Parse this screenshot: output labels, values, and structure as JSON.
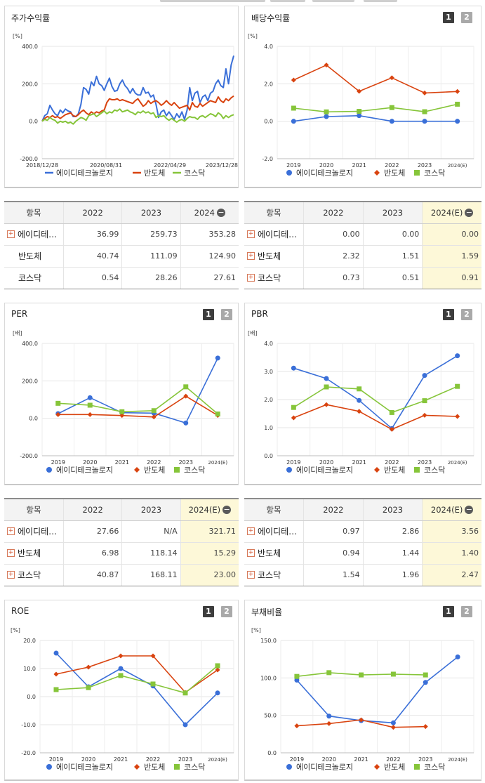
{
  "colors": {
    "company": "#3a6fd8",
    "semiconductor": "#d9430f",
    "kosdaq": "#86c53a"
  },
  "legend": [
    "에이디테크놀로지",
    "반도체",
    "코스닥"
  ],
  "panels": {
    "return": {
      "title": "주가수익률"
    },
    "dividend": {
      "title": "배당수익률",
      "btn1": "1",
      "btn2": "2"
    },
    "per": {
      "title": "PER",
      "btn1": "1",
      "btn2": "2"
    },
    "pbr": {
      "title": "PBR",
      "btn1": "1",
      "btn2": "2"
    },
    "roe": {
      "title": "ROE",
      "btn1": "1",
      "btn2": "2"
    },
    "debt": {
      "title": "부채비율",
      "btn1": "1",
      "btn2": "2"
    }
  },
  "tables": {
    "return": {
      "headers": [
        "항목",
        "2022",
        "2023",
        "2024"
      ],
      "rows": [
        {
          "name": "에이디테…",
          "v": [
            "36.99",
            "259.73",
            "353.28"
          ],
          "plus": true
        },
        {
          "name": "반도체",
          "v": [
            "40.74",
            "111.09",
            "124.90"
          ],
          "plus": false
        },
        {
          "name": "코스닥",
          "v": [
            "0.54",
            "28.26",
            "27.61"
          ],
          "plus": false
        }
      ]
    },
    "dividend": {
      "headers": [
        "항목",
        "2022",
        "2023",
        "2024(E)"
      ],
      "rows": [
        {
          "name": "에이디테…",
          "v": [
            "0.00",
            "0.00",
            "0.00"
          ],
          "plus": true
        },
        {
          "name": "반도체",
          "v": [
            "2.32",
            "1.51",
            "1.59"
          ],
          "plus": true
        },
        {
          "name": "코스닥",
          "v": [
            "0.73",
            "0.51",
            "0.91"
          ],
          "plus": true
        }
      ]
    },
    "per": {
      "headers": [
        "항목",
        "2022",
        "2023",
        "2024(E)"
      ],
      "rows": [
        {
          "name": "에이디테…",
          "v": [
            "27.66",
            "N/A",
            "321.71"
          ],
          "plus": true
        },
        {
          "name": "반도체",
          "v": [
            "6.98",
            "118.14",
            "15.29"
          ],
          "plus": true
        },
        {
          "name": "코스닥",
          "v": [
            "40.87",
            "168.11",
            "23.00"
          ],
          "plus": true
        }
      ]
    },
    "pbr": {
      "headers": [
        "항목",
        "2022",
        "2023",
        "2024(E)"
      ],
      "rows": [
        {
          "name": "에이디테…",
          "v": [
            "0.97",
            "2.86",
            "3.56"
          ],
          "plus": true
        },
        {
          "name": "반도체",
          "v": [
            "0.94",
            "1.44",
            "1.40"
          ],
          "plus": true
        },
        {
          "name": "코스닥",
          "v": [
            "1.54",
            "1.96",
            "2.47"
          ],
          "plus": true
        }
      ]
    }
  },
  "chart_data": [
    {
      "id": "return",
      "type": "line",
      "unit": "[%]",
      "ylim": [
        -200,
        400
      ],
      "yticks": [
        "400.0",
        "200.0",
        "0.0",
        "-200.0"
      ],
      "xticks": [
        "2018/12/28",
        "2020/08/31",
        "2022/04/29",
        "2023/12/28"
      ],
      "series": [
        {
          "name": "에이디테크놀로지",
          "values": [
            0,
            30,
            40,
            85,
            60,
            40,
            30,
            60,
            45,
            65,
            55,
            50,
            25,
            25,
            40,
            90,
            180,
            170,
            145,
            210,
            190,
            240,
            200,
            190,
            165,
            200,
            230,
            185,
            160,
            165,
            200,
            220,
            190,
            175,
            150,
            175,
            150,
            140,
            140,
            180,
            150,
            155,
            130,
            140,
            90,
            20,
            50,
            60,
            30,
            50,
            30,
            10,
            40,
            20,
            50,
            10,
            60,
            180,
            110,
            150,
            160,
            100,
            130,
            140,
            110,
            150,
            160,
            200,
            220,
            190,
            180,
            280,
            200,
            300,
            350
          ]
        },
        {
          "name": "반도체",
          "values": [
            0,
            15,
            25,
            20,
            30,
            20,
            25,
            15,
            25,
            35,
            40,
            45,
            30,
            25,
            35,
            50,
            60,
            45,
            35,
            50,
            40,
            50,
            45,
            55,
            60,
            100,
            120,
            115,
            115,
            120,
            110,
            115,
            110,
            105,
            100,
            95,
            110,
            120,
            100,
            80,
            90,
            110,
            95,
            105,
            110,
            100,
            85,
            95,
            110,
            95,
            85,
            100,
            85,
            70,
            75,
            80,
            85,
            60,
            100,
            80,
            75,
            95,
            80,
            90,
            100,
            110,
            105,
            100,
            130,
            110,
            100,
            120,
            110,
            125,
            135
          ]
        },
        {
          "name": "코스닥",
          "values": [
            0,
            10,
            5,
            20,
            10,
            5,
            -10,
            0,
            -5,
            0,
            -10,
            -5,
            -15,
            0,
            10,
            20,
            15,
            5,
            30,
            35,
            40,
            25,
            35,
            45,
            55,
            40,
            50,
            45,
            60,
            55,
            65,
            50,
            55,
            60,
            50,
            45,
            35,
            50,
            45,
            55,
            45,
            50,
            40,
            45,
            20,
            30,
            25,
            30,
            15,
            5,
            15,
            5,
            -5,
            5,
            10,
            0,
            15,
            25,
            20,
            20,
            10,
            25,
            30,
            20,
            30,
            40,
            35,
            25,
            45,
            35,
            15,
            30,
            20,
            30,
            35
          ]
        }
      ]
    },
    {
      "id": "dividend",
      "type": "line",
      "unit": "[%]",
      "ylim": [
        -2,
        4
      ],
      "yticks": [
        "4.0",
        "2.0",
        "0.0",
        "-2.0"
      ],
      "categories": [
        "2019",
        "2020",
        "2021",
        "2022",
        "2023",
        "2024(E)"
      ],
      "series": [
        {
          "name": "에이디테크놀로지",
          "values": [
            0.0,
            0.25,
            0.3,
            0.0,
            0.0,
            0.0
          ]
        },
        {
          "name": "반도체",
          "values": [
            2.2,
            3.0,
            1.6,
            2.32,
            1.51,
            1.59
          ]
        },
        {
          "name": "코스닥",
          "values": [
            0.7,
            0.5,
            0.53,
            0.73,
            0.51,
            0.91
          ]
        }
      ]
    },
    {
      "id": "per",
      "type": "line",
      "unit": "[배]",
      "ylim": [
        -200,
        400
      ],
      "yticks": [
        "400.0",
        "200.0",
        "0.0",
        "-200.0"
      ],
      "categories": [
        "2019",
        "2020",
        "2021",
        "2022",
        "2023",
        "2024(E)"
      ],
      "series": [
        {
          "name": "에이디테크놀로지",
          "values": [
            25,
            110,
            30,
            27.66,
            -25,
            321.71
          ]
        },
        {
          "name": "반도체",
          "values": [
            20,
            20,
            15,
            6.98,
            118.14,
            15.29
          ]
        },
        {
          "name": "코스닥",
          "values": [
            80,
            70,
            35,
            40.87,
            168.11,
            23.0
          ]
        }
      ]
    },
    {
      "id": "pbr",
      "type": "line",
      "unit": "[배]",
      "ylim": [
        0,
        4
      ],
      "yticks": [
        "4.0",
        "3.0",
        "2.0",
        "1.0",
        "0.0"
      ],
      "categories": [
        "2019",
        "2020",
        "2021",
        "2022",
        "2023",
        "2024(E)"
      ],
      "series": [
        {
          "name": "에이디테크놀로지",
          "values": [
            3.12,
            2.75,
            1.97,
            0.97,
            2.86,
            3.56
          ]
        },
        {
          "name": "반도체",
          "values": [
            1.35,
            1.82,
            1.58,
            0.94,
            1.44,
            1.4
          ]
        },
        {
          "name": "코스닥",
          "values": [
            1.72,
            2.45,
            2.38,
            1.54,
            1.96,
            2.47
          ]
        }
      ]
    },
    {
      "id": "roe",
      "type": "line",
      "unit": "[%]",
      "ylim": [
        -20,
        20
      ],
      "yticks": [
        "20.0",
        "10.0",
        "0.0",
        "-10.0",
        "-20.0"
      ],
      "categories": [
        "2019",
        "2020",
        "2021",
        "2022",
        "2023",
        "2024(E)"
      ],
      "series": [
        {
          "name": "에이디테크놀로지",
          "values": [
            15.5,
            3.5,
            10.0,
            3.8,
            -10.0,
            1.3
          ]
        },
        {
          "name": "반도체",
          "values": [
            8.0,
            10.5,
            14.5,
            14.5,
            1.5,
            9.5
          ]
        },
        {
          "name": "코스닥",
          "values": [
            2.5,
            3.2,
            7.5,
            4.5,
            1.3,
            11.0
          ]
        }
      ]
    },
    {
      "id": "debt",
      "type": "line",
      "unit": "[%]",
      "ylim": [
        0,
        150
      ],
      "yticks": [
        "150.0",
        "100.0",
        "50.0",
        "0.0"
      ],
      "categories": [
        "2019",
        "2020",
        "2021",
        "2022",
        "2023",
        "2024(E)"
      ],
      "series": [
        {
          "name": "에이디테크놀로지",
          "values": [
            97,
            49,
            43,
            40,
            94,
            128
          ]
        },
        {
          "name": "반도체",
          "values": [
            36,
            39,
            44,
            34,
            35,
            null
          ]
        },
        {
          "name": "코스닥",
          "values": [
            102,
            107,
            104,
            105,
            104,
            null
          ]
        }
      ]
    }
  ]
}
